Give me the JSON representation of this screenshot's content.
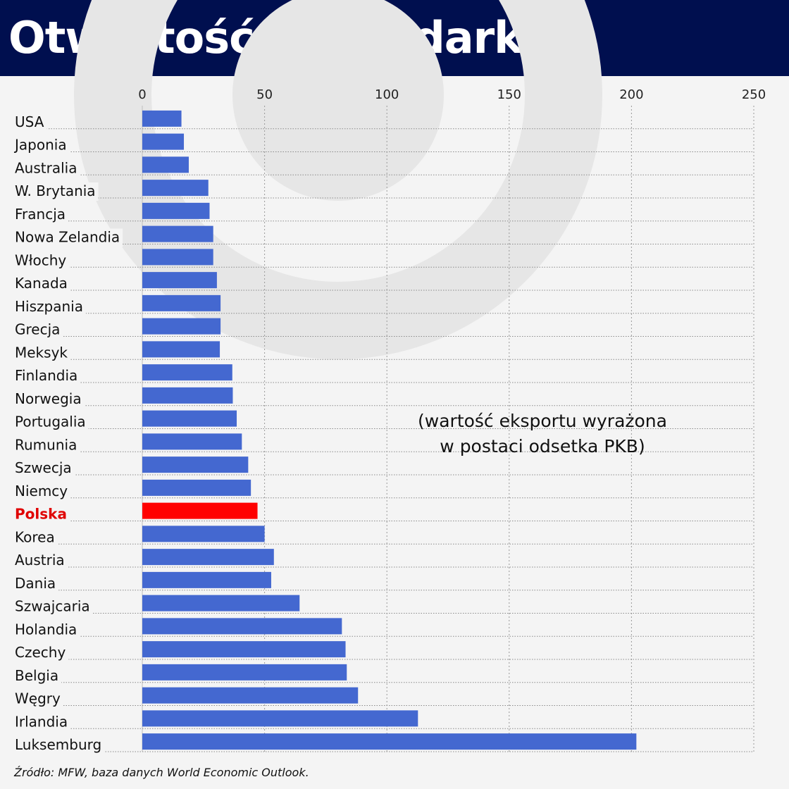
{
  "title": "Otwartość gospodarki",
  "note_line1": "(wartość eksportu wyrażona",
  "note_line2": "w postaci odsetka PKB)",
  "source": "Źródło: MFW, baza danych World Economic Outlook.",
  "colors": {
    "header": "#000f4f",
    "bar": "#4468d0",
    "highlight_bar": "#ff0000",
    "highlight_label": "#e00000",
    "watermark": "#e6e6e6"
  },
  "chart_data": {
    "type": "bar",
    "orientation": "horizontal",
    "categories": [
      "USA",
      "Japonia",
      "Australia",
      "W. Brytania",
      "Francja",
      "Nowa Zelandia",
      "Włochy",
      "Kanada",
      "Hiszpania",
      "Grecja",
      "Meksyk",
      "Finlandia",
      "Norwegia",
      "Portugalia",
      "Rumunia",
      "Szwecja",
      "Niemcy",
      "Polska",
      "Korea",
      "Austria",
      "Dania",
      "Szwajcaria",
      "Holandia",
      "Czechy",
      "Belgia",
      "Węgry",
      "Irlandia",
      "Luksemburg"
    ],
    "values": [
      16,
      17,
      19,
      27,
      27.5,
      29,
      29,
      30.5,
      32,
      32,
      31.7,
      36.8,
      37,
      38.6,
      40.7,
      43.3,
      44.4,
      47.1,
      50,
      53.8,
      52.7,
      64.3,
      81.6,
      83.1,
      83.6,
      88.2,
      112.7,
      202
    ],
    "highlight": "Polska",
    "ticks": [
      0,
      50,
      100,
      150,
      200,
      250
    ],
    "xlim": [
      0,
      250
    ],
    "grid": true
  }
}
